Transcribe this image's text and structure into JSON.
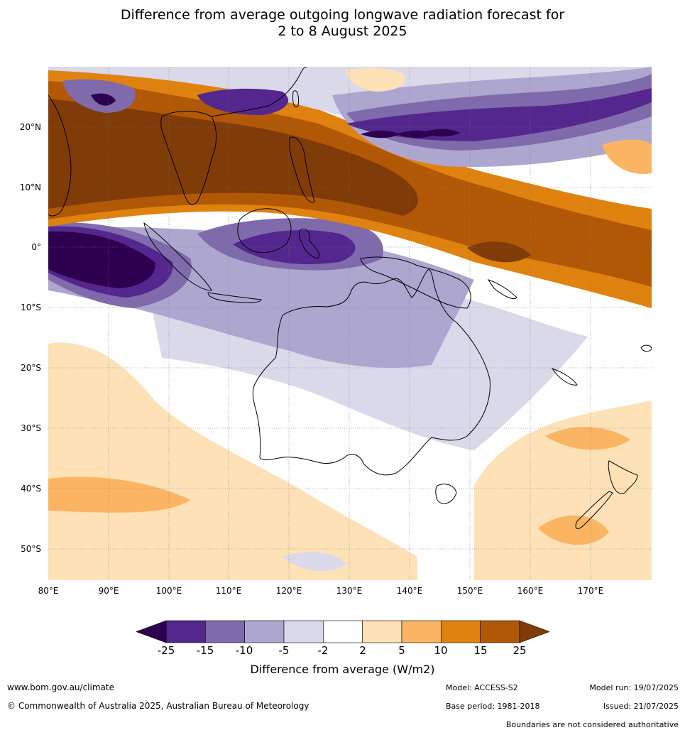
{
  "title": {
    "line1": "Difference from average outgoing longwave radiation forecast for",
    "line2": "2 to 8 August 2025"
  },
  "map": {
    "lat_labels": [
      "20°N",
      "10°N",
      "0°",
      "10°S",
      "20°S",
      "30°S",
      "40°S",
      "50°S"
    ],
    "lon_labels": [
      "80°E",
      "90°E",
      "100°E",
      "110°E",
      "120°E",
      "130°E",
      "140°E",
      "150°E",
      "160°E",
      "170°E"
    ]
  },
  "colorbar": {
    "ticks": [
      "-25",
      "-15",
      "-10",
      "-5",
      "-2",
      "2",
      "5",
      "10",
      "15",
      "25"
    ],
    "colors": [
      "#54278f",
      "#7f6aab",
      "#ada7d0",
      "#d9d9ea",
      "#ffffff",
      "#fee1b7",
      "#fbb562",
      "#e0820f",
      "#b15806"
    ],
    "under_color": "#2d0050",
    "over_color": "#7f3b08",
    "title": "Difference from average (W/m2)"
  },
  "footer": {
    "website": "www.bom.gov.au/climate",
    "copyright": "© Commonwealth of Australia 2025, Australian Bureau of Meteorology",
    "model": "Model: ACCESS-S2",
    "base_period": "Base period: 1981-2018",
    "model_run": "Model run: 19/07/2025",
    "issued": "Issued: 21/07/2025",
    "boundaries_note": "Boundaries are not considered authoritative"
  }
}
